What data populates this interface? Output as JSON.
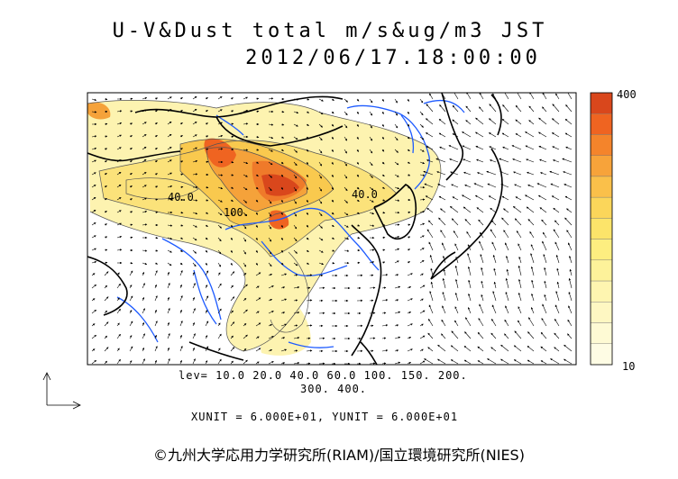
{
  "title": "U-V&Dust total m/s&ug/m3 JST",
  "timestamp": "2012/06/17.18:00:00",
  "colorbar": {
    "max_label": "400",
    "min_label": "10",
    "colors": [
      "#d9471c",
      "#ef6421",
      "#f4842b",
      "#f7a33a",
      "#fac04a",
      "#fbd65a",
      "#fce46a",
      "#fdee80",
      "#fdf29a",
      "#fef5b0",
      "#fef7c2",
      "#fefad4",
      "#fefce4"
    ]
  },
  "contour_labels": [
    "40.0",
    "100.",
    "40.0"
  ],
  "levels_line1": "lev= 10.0 20.0 40.0 60.0 100. 150. 200.",
  "levels_line2": "300. 400.",
  "units": "XUNIT = 6.000E+01, YUNIT = 6.000E+01",
  "credit": "©九州大学応用力学研究所(RIAM)/国立環境研究所(NIES)",
  "colors": {
    "coast": "#000000",
    "river": "#1e5bff",
    "dust_light": "#fdf3b0"
  }
}
